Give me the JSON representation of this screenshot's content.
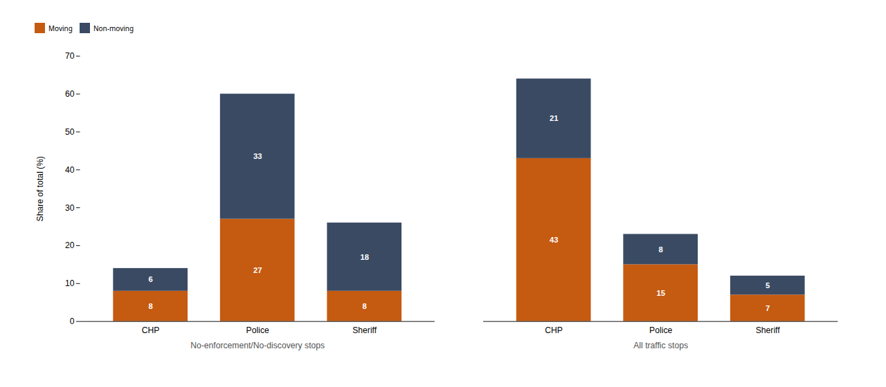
{
  "chart_data": {
    "type": "bar",
    "stacked": true,
    "data_labels": true,
    "ylabel": "Share of total (%)",
    "groups": [
      {
        "label": "No-enforcement/No-discovery stops",
        "categories": [
          "CHP",
          "Police",
          "Sheriff"
        ]
      },
      {
        "label": "All traffic stops",
        "categories": [
          "CHP",
          "Police",
          "Sheriff"
        ]
      }
    ],
    "series": [
      {
        "name": "Moving",
        "color": "#C55A11",
        "values": [
          8,
          27,
          8,
          43,
          15,
          7
        ]
      },
      {
        "name": "Non-moving",
        "color": "#3A4A63",
        "values": [
          6,
          33,
          18,
          21,
          8,
          5
        ]
      }
    ],
    "ylim": [
      0,
      70
    ],
    "yticks": [
      0,
      10,
      20,
      30,
      40,
      50,
      60,
      70
    ],
    "grid": false,
    "legend": "top"
  }
}
